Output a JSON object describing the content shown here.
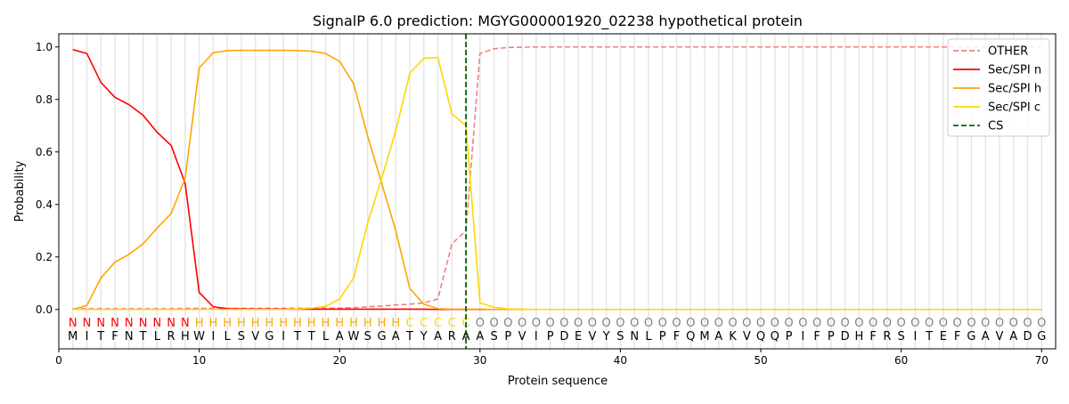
{
  "chart_data": {
    "type": "line",
    "title": "SignalP 6.0 prediction: MGYG000001920_02238 hypothetical protein",
    "xlabel": "Protein sequence",
    "ylabel": "Probability",
    "xlim": [
      0,
      71
    ],
    "ylim": [
      -0.15,
      1.05
    ],
    "xticks": [
      0,
      10,
      20,
      30,
      40,
      50,
      60,
      70
    ],
    "yticks": [
      0.0,
      0.2,
      0.4,
      0.6,
      0.8,
      1.0
    ],
    "ytick_labels": [
      "0.0",
      "0.2",
      "0.4",
      "0.6",
      "0.8",
      "1.0"
    ],
    "grid": "vertical lines at each residue",
    "legend_position": "top-right",
    "sequence": [
      "M",
      "I",
      "T",
      "F",
      "N",
      "T",
      "L",
      "R",
      "H",
      "W",
      "I",
      "L",
      "S",
      "V",
      "G",
      "I",
      "T",
      "T",
      "L",
      "A",
      "W",
      "S",
      "G",
      "A",
      "T",
      "Y",
      "A",
      "R",
      "A",
      "A",
      "S",
      "P",
      "V",
      "I",
      "P",
      "D",
      "E",
      "V",
      "Y",
      "S",
      "N",
      "L",
      "P",
      "F",
      "Q",
      "M",
      "A",
      "K",
      "V",
      "Q",
      "Q",
      "P",
      "I",
      "F",
      "P",
      "D",
      "H",
      "F",
      "R",
      "S",
      "I",
      "T",
      "E",
      "F",
      "G",
      "A",
      "V",
      "A",
      "D",
      "G"
    ],
    "region_labels": "NNNNNNNNNHHHHHHHHHHHHHHHCCCCCOOOOOOOOOOOOOOOOOOOOOOOOOOOOOOOOOOOOOOOOO",
    "region_colors": {
      "N": "#ff0000",
      "H": "#ffa500",
      "C": "#ffd700",
      "O": "#808080"
    },
    "cleavage_site": 29,
    "series": [
      {
        "name": "OTHER",
        "color": "#f08080",
        "dash": true,
        "values": [
          0.003,
          0.003,
          0.003,
          0.003,
          0.003,
          0.003,
          0.003,
          0.003,
          0.004,
          0.004,
          0.004,
          0.004,
          0.004,
          0.004,
          0.004,
          0.004,
          0.005,
          0.005,
          0.005,
          0.005,
          0.007,
          0.01,
          0.013,
          0.017,
          0.02,
          0.025,
          0.04,
          0.25,
          0.3,
          0.975,
          0.993,
          0.998,
          0.999,
          1,
          1,
          1,
          1,
          1,
          1,
          1,
          1,
          1,
          1,
          1,
          1,
          1,
          1,
          1,
          1,
          1,
          1,
          1,
          1,
          1,
          1,
          1,
          1,
          1,
          1,
          1,
          1,
          1,
          1,
          1,
          1,
          1,
          1,
          1,
          1,
          1
        ]
      },
      {
        "name": "Sec/SPI n",
        "color": "#ff0000",
        "dash": false,
        "values": [
          0.99,
          0.975,
          0.865,
          0.808,
          0.78,
          0.74,
          0.675,
          0.625,
          0.48,
          0.065,
          0.01,
          0.003,
          0.002,
          0.001,
          0.001,
          0.001,
          0.001,
          0.001,
          0.001,
          0.001,
          0.001,
          0.001,
          0.001,
          0.001,
          0.001,
          0.001,
          0,
          0,
          0,
          0,
          0,
          0,
          0,
          0,
          0,
          0,
          0,
          0,
          0,
          0,
          0,
          0,
          0,
          0,
          0,
          0,
          0,
          0,
          0,
          0,
          0,
          0,
          0,
          0,
          0,
          0,
          0,
          0,
          0,
          0,
          0,
          0,
          0,
          0,
          0,
          0,
          0,
          0,
          0,
          0
        ]
      },
      {
        "name": "Sec/SPI h",
        "color": "#ffa500",
        "dash": false,
        "values": [
          0.0,
          0.015,
          0.12,
          0.18,
          0.21,
          0.25,
          0.31,
          0.365,
          0.5,
          0.92,
          0.978,
          0.986,
          0.987,
          0.987,
          0.987,
          0.987,
          0.986,
          0.984,
          0.975,
          0.945,
          0.86,
          0.66,
          0.48,
          0.3,
          0.08,
          0.02,
          0.003,
          0.001,
          0.001,
          0.001,
          0,
          0,
          0,
          0,
          0,
          0,
          0,
          0,
          0,
          0,
          0,
          0,
          0,
          0,
          0,
          0,
          0,
          0,
          0,
          0,
          0,
          0,
          0,
          0,
          0,
          0,
          0,
          0,
          0,
          0,
          0,
          0,
          0,
          0,
          0,
          0,
          0,
          0,
          0,
          0
        ]
      },
      {
        "name": "Sec/SPI c",
        "color": "#ffd700",
        "dash": false,
        "values": [
          0,
          0,
          0,
          0,
          0,
          0,
          0,
          0,
          0,
          0,
          0,
          0,
          0,
          0,
          0,
          0,
          0.002,
          0.005,
          0.012,
          0.04,
          0.12,
          0.33,
          0.5,
          0.68,
          0.9,
          0.957,
          0.96,
          0.745,
          0.7,
          0.025,
          0.008,
          0.002,
          0.001,
          0,
          0,
          0,
          0,
          0,
          0,
          0,
          0,
          0,
          0,
          0,
          0,
          0,
          0,
          0,
          0,
          0,
          0,
          0,
          0,
          0,
          0,
          0,
          0,
          0,
          0,
          0,
          0,
          0,
          0,
          0,
          0,
          0,
          0,
          0,
          0,
          0
        ]
      },
      {
        "name": "CS",
        "color": "#006400",
        "dash": true,
        "values": []
      }
    ]
  }
}
